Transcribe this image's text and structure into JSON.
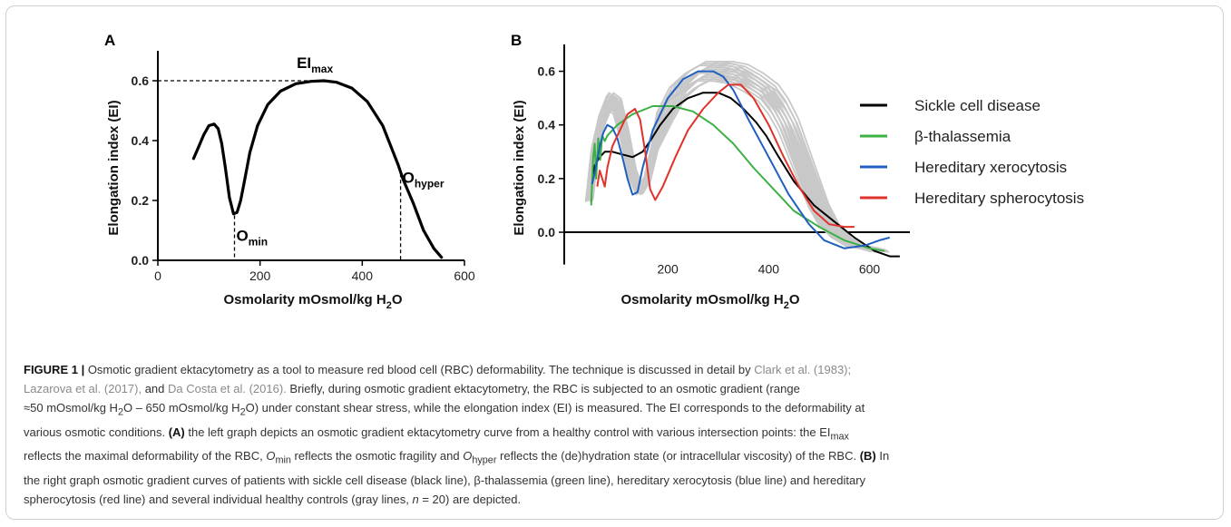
{
  "chart_data": [
    {
      "type": "line",
      "panel": "A",
      "ylabel": "Elongation index (EI)",
      "xlabel_main": "Osmolarity mOsmol/kg H",
      "xlabel_sub": "2",
      "xlabel_end": "O",
      "xlim": [
        0,
        600
      ],
      "ylim": [
        0,
        0.7
      ],
      "x_ticks": [
        "0",
        "200",
        "400",
        "600"
      ],
      "y_ticks": [
        "0.0",
        "0.2",
        "0.4",
        "0.6"
      ],
      "series": [
        {
          "color": "#000000",
          "x": [
            70,
            80,
            90,
            100,
            110,
            118,
            125,
            132,
            140,
            148,
            155,
            162,
            170,
            180,
            195,
            215,
            240,
            270,
            300,
            325,
            350,
            380,
            410,
            440,
            470,
            480,
            500,
            520,
            540,
            555
          ],
          "y": [
            0.34,
            0.38,
            0.42,
            0.45,
            0.455,
            0.44,
            0.39,
            0.31,
            0.21,
            0.155,
            0.16,
            0.2,
            0.27,
            0.36,
            0.45,
            0.52,
            0.565,
            0.59,
            0.598,
            0.6,
            0.595,
            0.575,
            0.53,
            0.45,
            0.32,
            0.27,
            0.19,
            0.1,
            0.04,
            0.01
          ]
        }
      ],
      "annotations": [
        {
          "main": "EI",
          "sub": "max",
          "x": 325,
          "y": 0.6
        },
        {
          "main": "O",
          "sub": "min",
          "x": 150,
          "y": 0.15
        },
        {
          "main": "O",
          "sub": "hyper",
          "x": 475,
          "y": 0.29
        }
      ]
    },
    {
      "type": "line",
      "panel": "B",
      "ylabel": "Elongation index (EI)",
      "xlabel_main": "Osmolarity mOsmol/kg H",
      "xlabel_sub": "2",
      "xlabel_end": "O",
      "xlim": [
        0,
        680
      ],
      "ylim": [
        -0.1,
        0.7
      ],
      "x_ticks": [
        "200",
        "400",
        "600"
      ],
      "y_ticks": [
        "0.0",
        "0.2",
        "0.4",
        "0.6"
      ],
      "legend": [
        "Sickle cell disease",
        "β-thalassemia",
        "Hereditary xerocytosis",
        "Hereditary spherocytosis"
      ],
      "series": [
        {
          "name": "Sickle cell disease",
          "color": "#000000",
          "x": [
            50,
            55,
            65,
            75,
            90,
            110,
            130,
            150,
            165,
            185,
            210,
            240,
            270,
            300,
            325,
            350,
            375,
            395,
            420,
            450,
            490,
            530,
            570,
            610,
            640,
            660
          ],
          "y": [
            0.2,
            0.25,
            0.28,
            0.3,
            0.3,
            0.29,
            0.28,
            0.3,
            0.34,
            0.4,
            0.46,
            0.5,
            0.52,
            0.52,
            0.5,
            0.46,
            0.41,
            0.36,
            0.28,
            0.19,
            0.1,
            0.04,
            -0.02,
            -0.07,
            -0.09,
            -0.09
          ]
        },
        {
          "name": "β-thalassemia",
          "color": "#3cb043",
          "x": [
            48,
            52,
            55,
            58,
            62,
            66,
            70,
            75,
            80,
            85,
            100,
            130,
            170,
            210,
            250,
            290,
            330,
            370,
            410,
            450,
            500,
            550,
            600,
            630
          ],
          "y": [
            0.1,
            0.28,
            0.33,
            0.2,
            0.35,
            0.27,
            0.36,
            0.34,
            0.36,
            0.37,
            0.4,
            0.44,
            0.47,
            0.47,
            0.45,
            0.4,
            0.33,
            0.24,
            0.16,
            0.08,
            0.02,
            -0.03,
            -0.06,
            -0.07
          ]
        },
        {
          "name": "Hereditary xerocytosis",
          "color": "#1f5fbf",
          "x": [
            50,
            55,
            60,
            65,
            72,
            80,
            90,
            100,
            110,
            120,
            130,
            140,
            150,
            170,
            200,
            230,
            260,
            290,
            310,
            330,
            360,
            400,
            440,
            480,
            510,
            550,
            590,
            620,
            640
          ],
          "y": [
            0.18,
            0.22,
            0.27,
            0.32,
            0.37,
            0.4,
            0.39,
            0.35,
            0.28,
            0.2,
            0.14,
            0.15,
            0.24,
            0.38,
            0.5,
            0.57,
            0.6,
            0.6,
            0.58,
            0.53,
            0.42,
            0.28,
            0.14,
            0.03,
            -0.03,
            -0.06,
            -0.05,
            -0.03,
            -0.02
          ]
        },
        {
          "name": "Hereditary spherocytosis",
          "color": "#e0322b",
          "x": [
            60,
            65,
            70,
            75,
            80,
            90,
            105,
            120,
            135,
            145,
            155,
            165,
            175,
            190,
            215,
            240,
            270,
            300,
            320,
            345,
            370,
            400,
            430,
            460,
            490,
            520,
            550,
            570
          ],
          "y": [
            0.17,
            0.23,
            0.2,
            0.17,
            0.24,
            0.32,
            0.38,
            0.44,
            0.46,
            0.42,
            0.3,
            0.16,
            0.12,
            0.17,
            0.28,
            0.38,
            0.46,
            0.52,
            0.55,
            0.55,
            0.5,
            0.4,
            0.28,
            0.17,
            0.08,
            0.03,
            0.02,
            0.02
          ]
        }
      ],
      "healthy_controls": {
        "color": "#c8c8c8",
        "count": 20,
        "base_x": [
          45,
          55,
          70,
          85,
          100,
          115,
          130,
          145,
          160,
          175,
          195,
          220,
          250,
          280,
          310,
          340,
          370,
          400,
          420,
          440,
          460,
          480,
          500,
          520,
          545,
          570,
          600,
          620
        ],
        "base_y": [
          0.12,
          0.3,
          0.42,
          0.49,
          0.47,
          0.36,
          0.22,
          0.15,
          0.2,
          0.32,
          0.43,
          0.52,
          0.57,
          0.6,
          0.6,
          0.59,
          0.56,
          0.52,
          0.47,
          0.4,
          0.3,
          0.2,
          0.1,
          0.03,
          -0.02,
          -0.05,
          -0.06,
          -0.07
        ]
      }
    }
  ],
  "caption": {
    "fig_label": "FIGURE 1 |",
    "s1": " Osmotic gradient ektacytometry as a tool to measure red blood cell (RBC) deformability. The technique is discussed in detail by ",
    "ref1": "Clark et al. (1983);",
    "ref2": "Lazarova et al. (2017),",
    "s2": " and ",
    "ref3": "Da Costa et al. (2016).",
    "s3": " Briefly, during osmotic gradient ektacytometry, the RBC is subjected to an osmotic gradient (range",
    "s4": "≈50 mOsmol/kg H",
    "s4_sub": "2",
    "s5": "O – 650 mOsmol/kg H",
    "s5_sub": "2",
    "s6": "O) under constant shear stress, while the elongation index (EI) is measured. The EI corresponds to the deformability at",
    "s7": "various osmotic conditions. ",
    "panel_a": "(A)",
    "s8": " the left graph depicts an osmotic gradient ektacytometry curve from a healthy control with various intersection points: the EI",
    "s8_sub": "max",
    "s9": "reflects the maximal deformability of the RBC, ",
    "omin": "O",
    "omin_sub": "min",
    "s10": " reflects the osmotic fragility and ",
    "ohyp": "O",
    "ohyp_sub": "hyper",
    "s11": " reflects the (de)hydration state (or intracellular viscosity) of the RBC. ",
    "panel_b": "(B)",
    "s12": " In",
    "s13": "the right graph osmotic gradient curves of patients with sickle cell disease (black line), β-thalassemia (green line), hereditary xerocytosis (blue line) and hereditary",
    "s14": "spherocytosis (red line) and several individual healthy controls (gray lines, ",
    "n_label": "n",
    "s15": " = 20) are depicted."
  }
}
